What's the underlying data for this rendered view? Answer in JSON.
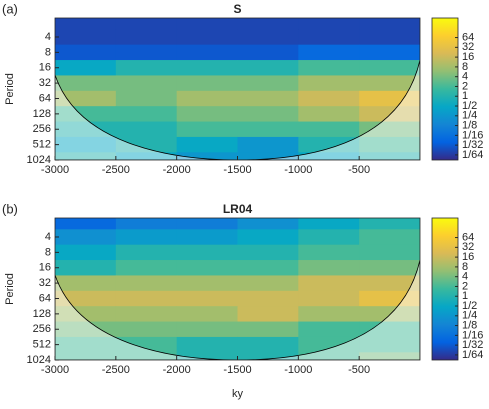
{
  "chart_data": [
    {
      "type": "heatmap",
      "panel_label": "(a)",
      "title": "S",
      "ylabel": "Period",
      "x": [
        -2750,
        -2250,
        -1750,
        -1250,
        -750,
        -250
      ],
      "y": [
        2,
        4,
        8,
        16,
        32,
        64,
        128,
        256,
        512,
        1024
      ],
      "values": [
        [
          0.02,
          0.02,
          0.02,
          0.02,
          0.02,
          0.02
        ],
        [
          0.02,
          0.02,
          0.02,
          0.02,
          0.02,
          0.02
        ],
        [
          0.03,
          0.03,
          0.03,
          0.03,
          0.05,
          0.05
        ],
        [
          0.5,
          1,
          1,
          1,
          2,
          2
        ],
        [
          4,
          4,
          4,
          4,
          8,
          8
        ],
        [
          8,
          4,
          8,
          8,
          16,
          32
        ],
        [
          2,
          2,
          4,
          4,
          8,
          16
        ],
        [
          1,
          1,
          2,
          2,
          2,
          4
        ],
        [
          0.5,
          1,
          0.5,
          0.25,
          1,
          2
        ],
        [
          1,
          0.5,
          0.25,
          0.25,
          0.5,
          1
        ]
      ],
      "xlim": [
        -3000,
        0
      ],
      "xticks": [
        -3000,
        -2500,
        -2000,
        -1500,
        -1000,
        -500
      ],
      "ylim": [
        1.7,
        1024
      ],
      "yscale": "log",
      "yticks": [
        4,
        8,
        16,
        32,
        64,
        128,
        256,
        512,
        1024
      ],
      "clim": [
        0.0109,
        256
      ],
      "cscale": "log",
      "cticks": [
        64,
        32,
        16,
        8,
        4,
        2,
        1,
        {
          "value": 0.5,
          "label": "1/2"
        },
        {
          "value": 0.25,
          "label": "1/4"
        },
        {
          "value": 0.125,
          "label": "1/8"
        },
        {
          "value": 0.0625,
          "label": "1/16"
        },
        {
          "value": 0.03125,
          "label": "1/32"
        },
        {
          "value": 0.015625,
          "label": "1/64"
        }
      ],
      "colormap": [
        "#352a87",
        "#0363e1",
        "#1485d4",
        "#06a7c6",
        "#38b99e",
        "#92bf73",
        "#d9ba56",
        "#fcce2e",
        "#f9fb0e"
      ]
    },
    {
      "type": "heatmap",
      "panel_label": "(b)",
      "title": "LR04",
      "ylabel": "Period",
      "xlabel": "ky",
      "x": [
        -2750,
        -2250,
        -1750,
        -1250,
        -750,
        -250
      ],
      "y": [
        2,
        4,
        8,
        16,
        32,
        64,
        128,
        256,
        512,
        1024
      ],
      "values": [
        [
          0.05,
          0.1,
          0.1,
          0.2,
          0.5,
          1
        ],
        [
          0.2,
          0.3,
          0.3,
          0.5,
          1,
          2
        ],
        [
          0.5,
          1,
          1,
          1,
          2,
          2
        ],
        [
          1,
          2,
          2,
          2,
          4,
          4
        ],
        [
          8,
          8,
          8,
          8,
          16,
          16
        ],
        [
          16,
          16,
          16,
          16,
          16,
          32
        ],
        [
          8,
          8,
          8,
          16,
          8,
          8
        ],
        [
          4,
          4,
          4,
          4,
          2,
          2
        ],
        [
          2,
          2,
          1,
          1,
          2,
          2
        ],
        [
          2,
          2,
          1,
          1,
          2,
          4
        ]
      ],
      "xlim": [
        -3000,
        0
      ],
      "xticks": [
        -3000,
        -2500,
        -2000,
        -1500,
        -1000,
        -500
      ],
      "ylim": [
        1.7,
        1024
      ],
      "yscale": "log",
      "yticks": [
        4,
        8,
        16,
        32,
        64,
        128,
        256,
        512,
        1024
      ],
      "clim": [
        0.0109,
        256
      ],
      "cscale": "log",
      "cticks": [
        64,
        32,
        16,
        8,
        4,
        2,
        1,
        {
          "value": 0.5,
          "label": "1/2"
        },
        {
          "value": 0.25,
          "label": "1/4"
        },
        {
          "value": 0.125,
          "label": "1/8"
        },
        {
          "value": 0.0625,
          "label": "1/16"
        },
        {
          "value": 0.03125,
          "label": "1/32"
        },
        {
          "value": 0.015625,
          "label": "1/64"
        }
      ],
      "colormap": [
        "#352a87",
        "#0363e1",
        "#1485d4",
        "#06a7c6",
        "#38b99e",
        "#92bf73",
        "#d9ba56",
        "#fcce2e",
        "#f9fb0e"
      ]
    }
  ]
}
